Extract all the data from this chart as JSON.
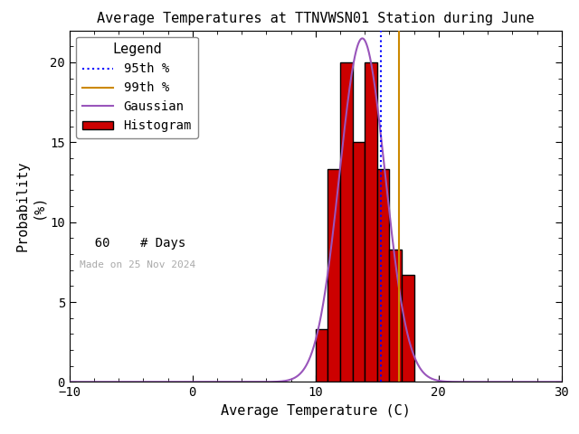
{
  "title": "Average Temperatures at TTNVWSN01 Station during June",
  "xlabel": "Average Temperature (C)",
  "ylabel_line1": "Probability",
  "ylabel_line2": "(%)",
  "xlim": [
    -10,
    30
  ],
  "ylim": [
    0,
    22
  ],
  "xticks": [
    -10,
    0,
    10,
    20,
    30
  ],
  "yticks": [
    0,
    5,
    10,
    15,
    20
  ],
  "bar_left_edges": [
    10,
    11,
    12,
    13,
    14,
    15,
    16,
    17,
    18
  ],
  "bar_heights": [
    3.3,
    13.3,
    20.0,
    15.0,
    20.0,
    13.3,
    8.3,
    6.7,
    0.0
  ],
  "bar_color": "#cc0000",
  "bar_edgecolor": "#000000",
  "gaussian_color": "#9955bb",
  "gaussian_mean": 13.8,
  "gaussian_std": 1.85,
  "gaussian_amplitude": 21.5,
  "percentile_95": 15.3,
  "percentile_99": 16.8,
  "n_days": 60,
  "legend_title": "Legend",
  "made_on_text": "Made on 25 Nov 2024",
  "background_color": "#ffffff",
  "title_fontsize": 11,
  "axis_fontsize": 11,
  "legend_fontsize": 10,
  "p95_color": "#0000ff",
  "p95_linestyle": "dotted",
  "p99_color": "#cc8800",
  "p99_linestyle": "solid"
}
